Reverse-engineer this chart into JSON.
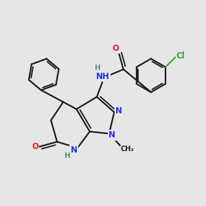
{
  "background_color": "#e6e6e6",
  "bond_color": "#1a1a1a",
  "bond_width": 1.6,
  "atom_colors": {
    "C": "#1a1a1a",
    "N": "#1a35e8",
    "O": "#e82020",
    "Cl": "#22aa22",
    "H": "#5a8a8a"
  },
  "font_size_atom": 8.5,
  "font_size_small": 7.0
}
